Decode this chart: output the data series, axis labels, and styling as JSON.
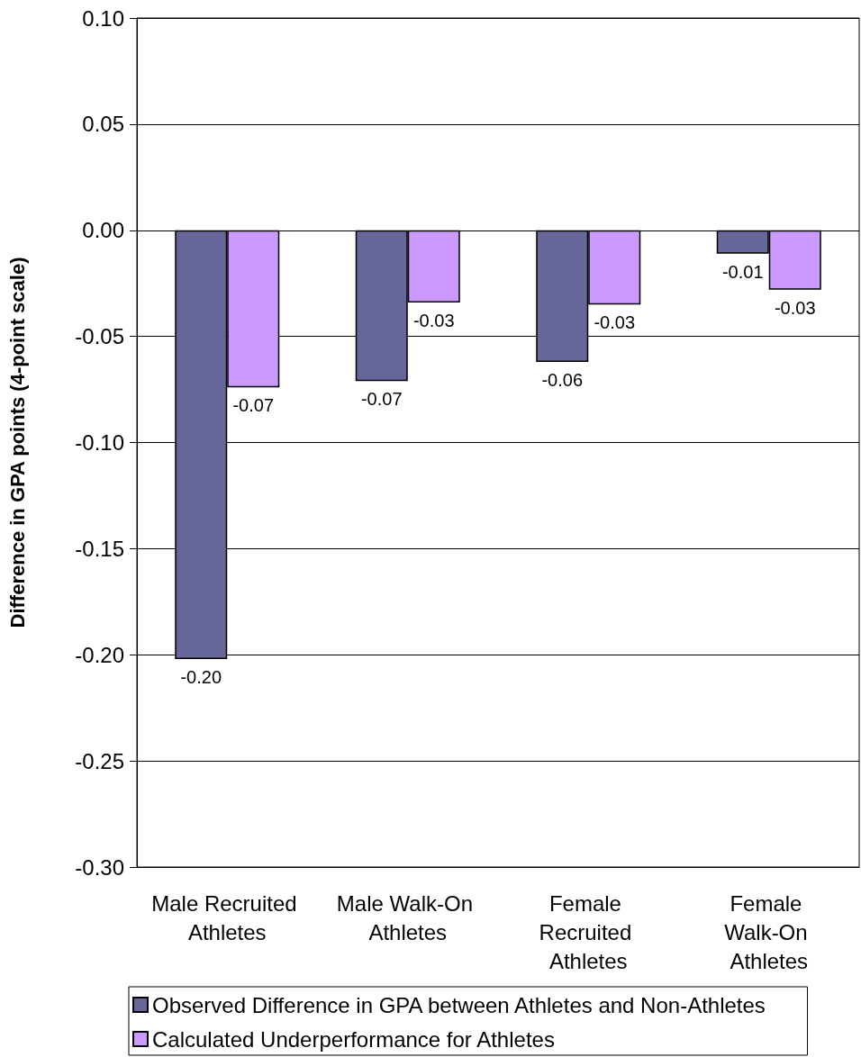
{
  "chart_data": {
    "type": "bar",
    "ylabel": "Difference in GPA points (4-point scale)",
    "categories": [
      "Male Recruited Athletes",
      "Male Walk-On Athletes",
      "Female Recruited Athletes",
      "Female Walk-On Athletes"
    ],
    "series": [
      {
        "name": "Observed Difference in GPA between Athletes and Non-Athletes",
        "color": "#666699",
        "values": [
          -0.202,
          -0.071,
          -0.062,
          -0.011
        ],
        "value_labels": [
          "-0.20",
          "-0.07",
          "-0.06",
          "-0.01"
        ]
      },
      {
        "name": "Calculated Underperformance for Athletes",
        "color": "#cc99ff",
        "values": [
          -0.074,
          -0.034,
          -0.035,
          -0.028
        ],
        "value_labels": [
          "-0.07",
          "-0.03",
          "-0.03",
          "-0.03"
        ]
      }
    ],
    "ylim": [
      -0.3,
      0.1
    ],
    "yticks": [
      {
        "value": -0.3,
        "label": "-0.30"
      },
      {
        "value": -0.25,
        "label": "-0.25"
      },
      {
        "value": -0.2,
        "label": "-0.20"
      },
      {
        "value": -0.15,
        "label": "-0.15"
      },
      {
        "value": -0.1,
        "label": "-0.10"
      },
      {
        "value": -0.05,
        "label": "-0.05"
      },
      {
        "value": 0,
        "label": "0.00"
      },
      {
        "value": 0.05,
        "label": "0.05"
      },
      {
        "value": 0.1,
        "label": "0.10"
      }
    ],
    "grid": "y",
    "legend": "bottom"
  }
}
